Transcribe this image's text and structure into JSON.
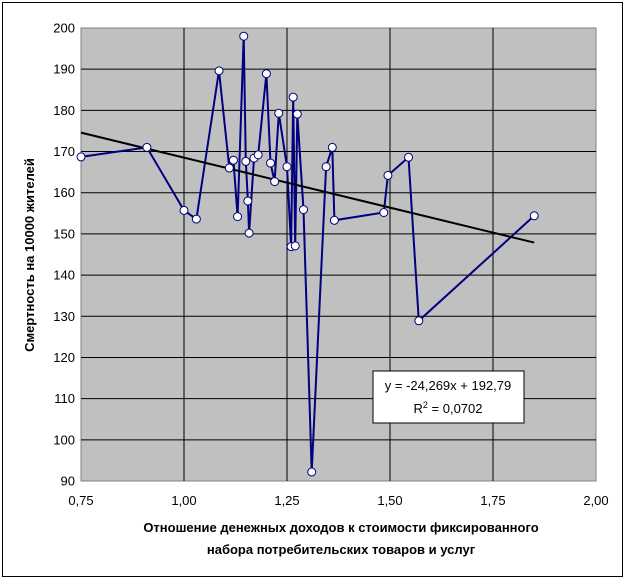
{
  "chart_data": {
    "type": "scatter",
    "xlabel_line1": "Отношение денежных доходов к стоимости фиксированного",
    "xlabel_line2": "набора потребительских товаров и услуг",
    "ylabel": "Смертность на 10000 жителей",
    "xlim": [
      0.75,
      2.0
    ],
    "ylim": [
      90,
      200
    ],
    "x_ticks": [
      "0,75",
      "1,00",
      "1,25",
      "1,50",
      "1,75",
      "2,00"
    ],
    "y_ticks": [
      "90",
      "100",
      "110",
      "120",
      "130",
      "140",
      "150",
      "160",
      "170",
      "180",
      "190",
      "200"
    ],
    "grid": true,
    "plot_background": "#c0c0c0",
    "series": [
      {
        "color": "#000080",
        "marker": "circle-white",
        "points": [
          [
            0.75,
            168.7
          ],
          [
            0.91,
            171.0
          ],
          [
            1.0,
            155.7
          ],
          [
            1.03,
            153.6
          ],
          [
            1.085,
            189.6
          ],
          [
            1.11,
            166.0
          ],
          [
            1.12,
            167.9
          ],
          [
            1.13,
            154.2
          ],
          [
            1.145,
            198.0
          ],
          [
            1.15,
            167.6
          ],
          [
            1.155,
            158.0
          ],
          [
            1.158,
            150.2
          ],
          [
            1.17,
            168.4
          ],
          [
            1.18,
            169.2
          ],
          [
            1.2,
            188.9
          ],
          [
            1.21,
            167.2
          ],
          [
            1.22,
            162.7
          ],
          [
            1.23,
            179.3
          ],
          [
            1.25,
            166.3
          ],
          [
            1.26,
            146.9
          ],
          [
            1.265,
            183.2
          ],
          [
            1.27,
            147.1
          ],
          [
            1.275,
            179.1
          ],
          [
            1.29,
            155.9
          ],
          [
            1.31,
            92.2
          ],
          [
            1.345,
            166.3
          ],
          [
            1.36,
            171.0
          ],
          [
            1.365,
            153.3
          ],
          [
            1.485,
            155.2
          ],
          [
            1.495,
            164.2
          ],
          [
            1.545,
            168.6
          ],
          [
            1.57,
            128.9
          ],
          [
            1.85,
            154.4
          ]
        ]
      }
    ],
    "trendline": {
      "color": "#000000",
      "slope": -24.269,
      "intercept": 192.79,
      "x_range": [
        0.75,
        1.85
      ],
      "equation_label": "y = -24,269x + 192,79",
      "r2_prefix": "R",
      "r2_sup": "2",
      "r2_value": " = 0,0702"
    }
  }
}
